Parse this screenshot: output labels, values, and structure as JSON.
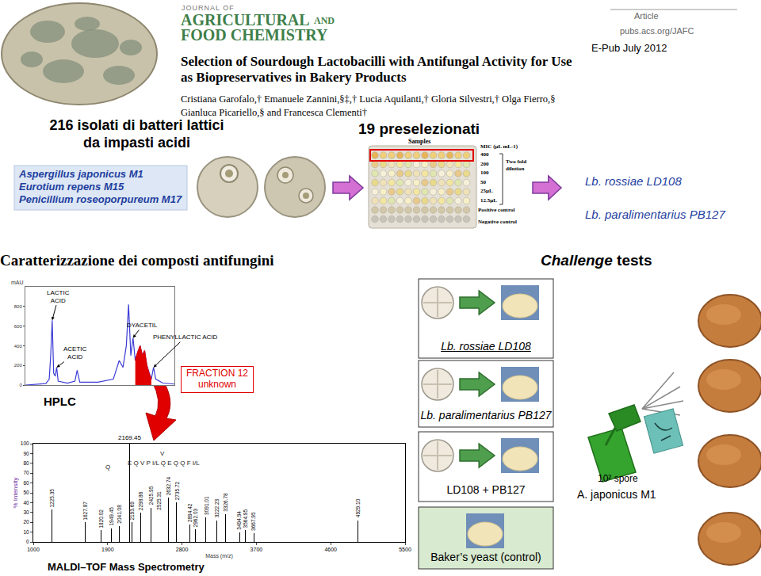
{
  "header": {
    "journal": [
      "JOURNAL OF",
      "AGRICULTURAL",
      "AND",
      "FOOD CHEMISTRY"
    ],
    "article_type": "Article",
    "url": "pubs.acs.org/JAFC",
    "epub": "E-Pub July 2012",
    "title": [
      "Selection of Sourdough Lactobacilli with Antifungal Activity for Use",
      "as Biopreservatives in Bakery Products"
    ],
    "authors": [
      "Cristiana Garofalo,† Emanuele Zannini,§‡,† Lucia Aquilanti,† Gloria Silvestri,† Olga Fierro,§",
      "Gianluca Picariello,§ and Francesca Clementi†"
    ]
  },
  "screening": {
    "title": [
      "216 isolati di batteri lattici",
      "da impasti acidi"
    ],
    "fungi": [
      "Aspergillus japonicus M1",
      "Eurotium repens M15",
      "Penicillium roseoporpureum M17"
    ],
    "preselected": "19 preselezionati",
    "mic_plate": {
      "samples": "Samples",
      "mic": "MIC (µL mL-1)",
      "concentrations": [
        "400",
        "200",
        "100",
        "50",
        "25µL",
        "12.5µL"
      ],
      "dilution": [
        "Two fold",
        "dilution"
      ],
      "positive": "Positive control",
      "negative": "Negative control"
    },
    "selected": [
      "Lb. rossiae LD108",
      "Lb. paralimentarius PB127"
    ]
  },
  "characterization": {
    "title": "Caratterizzazione dei composti antifungini",
    "fraction": [
      "FRACTION 12",
      "unknown"
    ]
  },
  "chart_data": [
    {
      "type": "line",
      "title": "HPLC",
      "y_label": "mAU",
      "x": [
        0,
        3.1,
        5.5,
        6.4,
        6.8,
        7.2,
        7.6,
        8.0,
        8.4,
        8.8,
        11.3,
        13.3,
        13.9,
        14.6,
        19.5,
        23.6,
        25.2,
        26.2,
        27.1,
        27.7,
        28.3,
        28.9,
        29.5,
        30.1,
        30.8,
        31.4,
        32.0,
        32.6,
        33.2,
        33.8,
        34.4,
        35.0,
        36.9,
        40
      ],
      "series": [
        {
          "color": "#3b3bd6",
          "values": [
            0,
            10,
            15,
            60,
            300,
            660,
            120,
            90,
            180,
            40,
            20,
            40,
            150,
            30,
            30,
            60,
            250,
            180,
            400,
            820,
            300,
            480,
            250,
            330,
            400,
            300,
            350,
            200,
            120,
            60,
            180,
            60,
            20,
            10
          ]
        },
        {
          "type": "area",
          "color": "#e00000",
          "values": [
            null,
            null,
            null,
            null,
            null,
            null,
            null,
            null,
            null,
            null,
            null,
            null,
            null,
            null,
            null,
            null,
            null,
            null,
            null,
            null,
            null,
            null,
            250,
            330,
            400,
            300,
            350,
            200,
            120,
            60,
            null,
            null,
            null,
            null
          ]
        }
      ],
      "xlim": [
        0,
        40
      ],
      "ylim": [
        0,
        1000
      ],
      "yticks": [
        0,
        200,
        400,
        600,
        800
      ],
      "tick_labels": "y",
      "annotations": [
        {
          "text": [
            "LACTIC",
            "ACID"
          ],
          "x": 7.2,
          "y": 660
        },
        {
          "text": [
            "ACETIC",
            "ACID"
          ],
          "x": 8.4,
          "y": 180
        },
        {
          "text": [
            "DYACETIL"
          ],
          "x": 28.9,
          "y": 480
        },
        {
          "text": [
            "PHENYLLACTIC ACID"
          ],
          "x": 34.4,
          "y": 180
        }
      ]
    },
    {
      "type": "bar",
      "title": "MALDI–TOF Mass Spectrometry",
      "x_label": "Mass (m/z)",
      "y_label": "% Intensity",
      "x": [
        1225.35,
        1627.87,
        1820.02,
        1949.45,
        2041.08,
        2169.45,
        2193.69,
        2298.86,
        2425.95,
        2525.31,
        2632.74,
        2735.72,
        2894.42,
        2962.03,
        3091.01,
        3222.23,
        3326.78,
        3494.94,
        3564.95,
        3667.95,
        4929.1
      ],
      "x_labels": [
        "1225.35",
        "1627.87",
        "1820.02",
        "1949.45",
        "2041.08",
        "2169.45",
        "2193.69",
        "2298.86",
        "2425.95",
        "2525.31",
        "2632.74",
        "2735.72",
        "2894.42",
        "2962.03",
        "3091.01",
        "3222.23",
        "3326.78",
        "3494.94",
        "3564.95",
        "3667.95",
        "4929.10"
      ],
      "values": [
        33,
        20,
        12,
        14,
        16,
        100,
        20,
        30,
        35,
        30,
        45,
        40,
        18,
        13,
        25,
        22,
        28,
        10,
        12,
        9,
        22
      ],
      "color": "#000000",
      "xlim": [
        1000,
        5500
      ],
      "xticks": [
        1000,
        1900,
        2800,
        3700,
        4600,
        5500
      ],
      "ylim": [
        0,
        100
      ],
      "yticks": [
        0,
        10,
        20,
        30,
        40,
        50,
        60,
        70,
        80,
        90,
        100
      ],
      "data_labels": true,
      "annotations": [
        {
          "text": "Q",
          "x": 1900,
          "y": 76
        },
        {
          "text": "E Q V P I/L Q E Q Q F I/L",
          "x": 2580,
          "y": 80
        },
        {
          "text": "V",
          "x": 2560,
          "y": 90
        }
      ]
    }
  ],
  "challenge": {
    "title": [
      "Challenge",
      "tests"
    ],
    "treatments": [
      "Lb. rossiae LD108",
      "Lb. paralimentarius PB127",
      "LD108 + PB127",
      "Baker’s yeast (control)"
    ],
    "inoculum": [
      "10² spore",
      "A. japonicus M1"
    ]
  }
}
